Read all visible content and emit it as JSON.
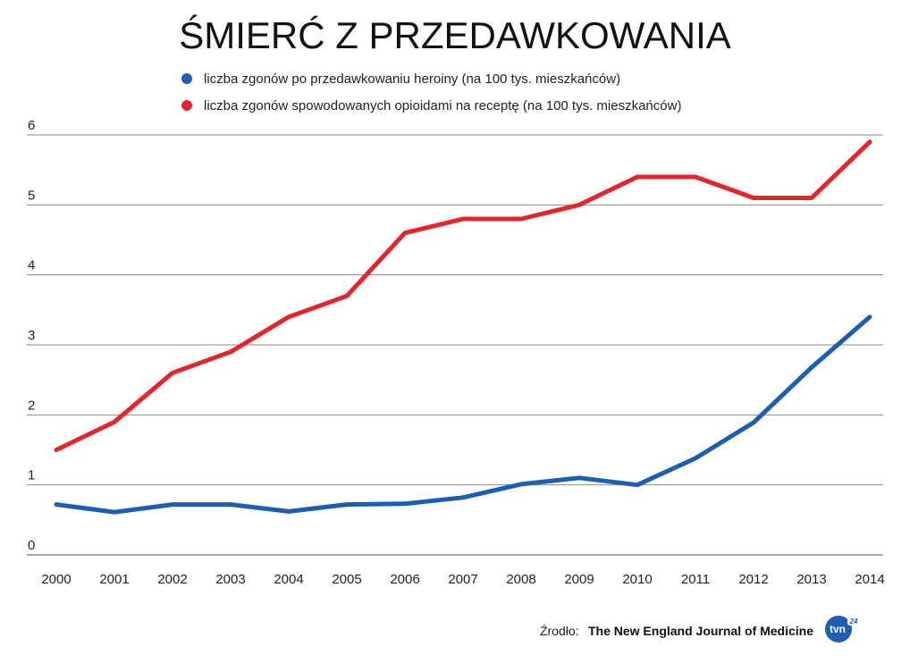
{
  "chart_data": {
    "type": "line",
    "title": "ŚMIERĆ Z PRZEDAWKOWANIA",
    "xlabel": "",
    "ylabel": "",
    "x": [
      "2000",
      "2001",
      "2002",
      "2003",
      "2004",
      "2005",
      "2006",
      "2007",
      "2008",
      "2009",
      "2010",
      "2011",
      "2012",
      "2013",
      "2014"
    ],
    "ylim": [
      0,
      6
    ],
    "yticks": [
      "0",
      "1",
      "2",
      "3",
      "4",
      "5",
      "6"
    ],
    "grid": true,
    "legend_position": "top",
    "series": [
      {
        "name": "liczba zgonów po przedawkowaniu heroiny (na 100 tys. mieszkańców)",
        "color": "#1a5fb4",
        "values": [
          0.72,
          0.61,
          0.72,
          0.72,
          0.62,
          0.72,
          0.73,
          0.82,
          1.01,
          1.1,
          1.0,
          1.38,
          1.89,
          2.68,
          3.4
        ]
      },
      {
        "name": "liczba zgonów spowodowanych opioidami na receptę (na 100 tys. mieszkańców)",
        "color": "#e5252a",
        "values": [
          1.5,
          1.9,
          2.6,
          2.9,
          3.4,
          3.7,
          4.6,
          4.8,
          4.8,
          5.0,
          5.4,
          5.4,
          5.1,
          5.1,
          5.9
        ]
      }
    ]
  },
  "source": {
    "prefix": "Źrodło:",
    "name": "The New England Journal of Medicine"
  },
  "logo": {
    "text": "tvn",
    "number": "24",
    "color": "#1e5fb5"
  }
}
